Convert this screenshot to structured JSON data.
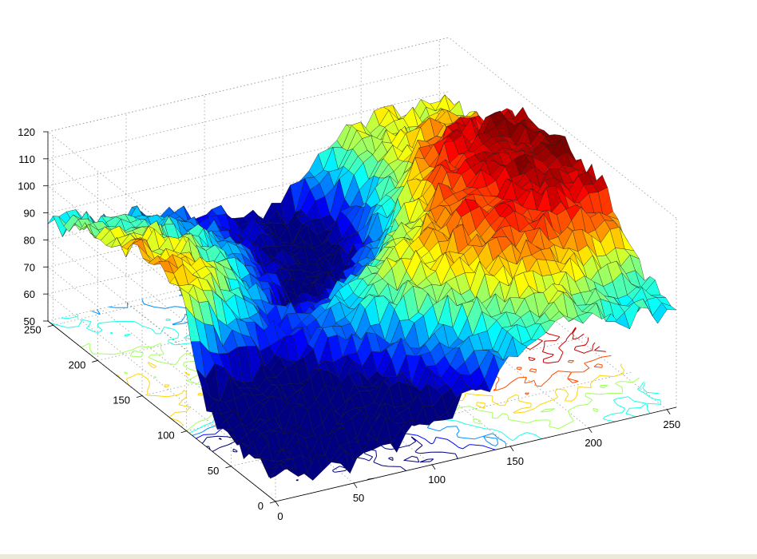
{
  "chart_data": {
    "type": "surface",
    "subtype": "surfc (3-D surface with contour plot on base plane)",
    "title": "",
    "xlabel": "",
    "ylabel": "",
    "zlabel": "",
    "xlim": [
      0,
      256
    ],
    "ylim": [
      0,
      256
    ],
    "zlim": [
      50,
      120
    ],
    "x_ticks": [
      0,
      50,
      100,
      150,
      200,
      250
    ],
    "y_ticks": [
      0,
      50,
      100,
      150,
      200,
      250
    ],
    "z_ticks": [
      50,
      60,
      70,
      80,
      90,
      100,
      110,
      120
    ],
    "x_tick_labels": [
      "0",
      "50",
      "100",
      "150",
      "200",
      "250"
    ],
    "y_tick_labels": [
      "0",
      "50",
      "100",
      "150",
      "200",
      "250"
    ],
    "z_tick_labels": [
      "50",
      "60",
      "70",
      "80",
      "90",
      "100",
      "110",
      "120"
    ],
    "grid": true,
    "box": false,
    "colormap": "jet",
    "color_range": [
      70,
      115
    ],
    "surface_features": [
      {
        "x": 225,
        "y": 140,
        "z": 118
      },
      {
        "x": 232,
        "y": 110,
        "z": 113
      },
      {
        "x": 42,
        "y": 210,
        "z": 112
      },
      {
        "x": 148,
        "y": 55,
        "z": 104
      },
      {
        "x": 180,
        "y": 110,
        "z": 104
      },
      {
        "x": 100,
        "y": 20,
        "z": 58
      },
      {
        "x": 128,
        "y": 170,
        "z": 62
      },
      {
        "x": 55,
        "y": 230,
        "z": 64
      },
      {
        "x": 255,
        "y": 5,
        "z": 86
      },
      {
        "x": 250,
        "y": 250,
        "z": 97
      }
    ]
  }
}
